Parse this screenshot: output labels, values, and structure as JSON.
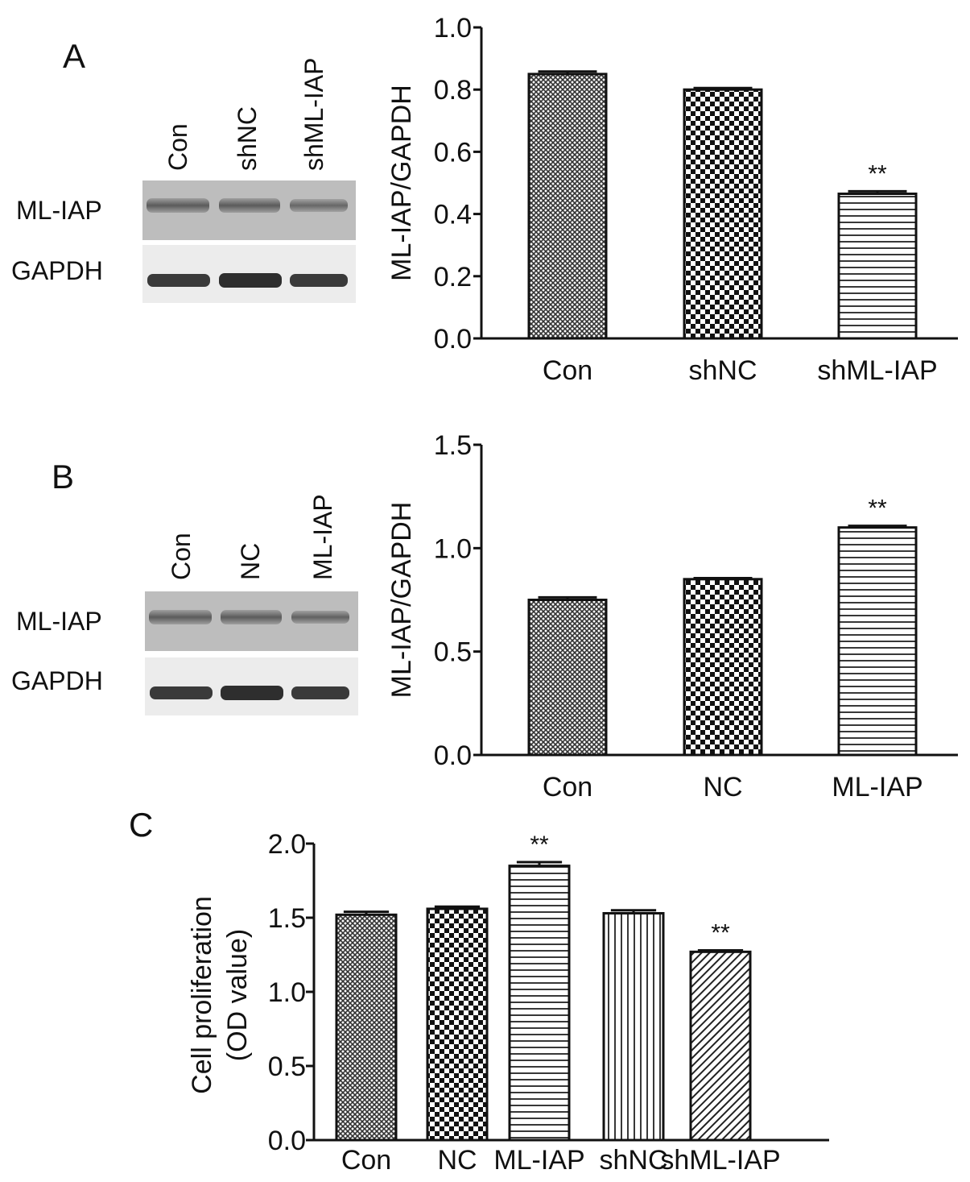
{
  "panels": [
    {
      "letter": "A"
    },
    {
      "letter": "B"
    },
    {
      "letter": "C"
    }
  ],
  "blots": [
    {
      "lanes": [
        "Con",
        "shNC",
        "shML-IAP"
      ],
      "rows": [
        "ML-IAP",
        "GAPDH"
      ]
    },
    {
      "lanes": [
        "Con",
        "NC",
        "ML-IAP"
      ],
      "rows": [
        "ML-IAP",
        "GAPDH"
      ]
    }
  ],
  "chart_data": [
    {
      "type": "bar",
      "panel": "A",
      "categories": [
        "Con",
        "shNC",
        "shML-IAP"
      ],
      "values": [
        0.85,
        0.8,
        0.465
      ],
      "errors": [
        0.008,
        0.005,
        0.008
      ],
      "patterns": [
        "crosshatch",
        "checker",
        "hlines"
      ],
      "significance": [
        "",
        "",
        "**"
      ],
      "ylabel": "ML-IAP/GAPDH",
      "ylim": [
        0,
        1.0
      ],
      "yticks": [
        "0.0",
        "0.2",
        "0.4",
        "0.6",
        "0.8",
        "1.0"
      ],
      "grid": false
    },
    {
      "type": "bar",
      "panel": "B",
      "categories": [
        "Con",
        "NC",
        "ML-IAP"
      ],
      "values": [
        0.75,
        0.85,
        1.1
      ],
      "errors": [
        0.012,
        0.005,
        0.008
      ],
      "patterns": [
        "crosshatch",
        "checker",
        "hlines"
      ],
      "significance": [
        "",
        "",
        "**"
      ],
      "ylabel": "ML-IAP/GAPDH",
      "ylim": [
        0,
        1.5
      ],
      "yticks": [
        "0.0",
        "0.5",
        "1.0",
        "1.5"
      ],
      "grid": false
    },
    {
      "type": "bar",
      "panel": "C",
      "categories": [
        "Con",
        "NC",
        "ML-IAP",
        "shNC",
        "shML-IAP"
      ],
      "values": [
        1.52,
        1.56,
        1.85,
        1.53,
        1.27
      ],
      "errors": [
        0.02,
        0.015,
        0.025,
        0.02,
        0.01
      ],
      "patterns": [
        "crosshatch",
        "checker",
        "hlines",
        "vlines",
        "diag"
      ],
      "significance": [
        "",
        "",
        "**",
        "",
        "**"
      ],
      "ylabel_lines": [
        "Cell proliferation",
        "(OD value)"
      ],
      "ylim": [
        0,
        2.0
      ],
      "yticks": [
        "0.0",
        "0.5",
        "1.0",
        "1.5",
        "2.0"
      ],
      "grid": false
    }
  ]
}
